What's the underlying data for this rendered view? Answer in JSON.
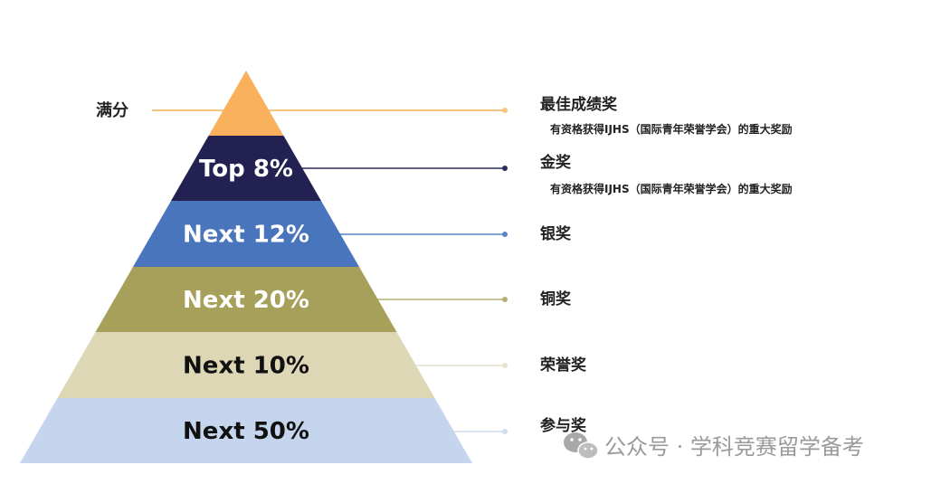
{
  "perfect_score_label": "满分",
  "tiers": [
    {
      "label": "",
      "award": "最佳成绩奖",
      "note": "有资格获得IJHS（国际青年荣誉学会）的重大奖励",
      "color": "#FAB15E",
      "text_color": "#ffffff",
      "line_color": "#F7C47F"
    },
    {
      "label": "Top 8%",
      "award": "金奖",
      "note": "有资格获得IJHS（国际青年荣誉学会）的重大奖励",
      "color": "#222151",
      "text_color": "#ffffff",
      "line_color": "#2B2A5C"
    },
    {
      "label": "Next 12%",
      "award": "银奖",
      "note": "",
      "color": "#4875BC",
      "text_color": "#ffffff",
      "line_color": "#5A84C5"
    },
    {
      "label": "Next 20%",
      "award": "铜奖",
      "note": "",
      "color": "#A7A05A",
      "text_color": "#ffffff",
      "line_color": "#B5AF73"
    },
    {
      "label": "Next 10%",
      "award": "荣誉奖",
      "note": "",
      "color": "#DDD7B6",
      "text_color": "#111111",
      "line_color": "#E6E2CC"
    },
    {
      "label": "Next 50%",
      "award": "参与奖",
      "note": "",
      "color": "#C5D5ED",
      "text_color": "#111111",
      "line_color": "#CFDCEF"
    }
  ],
  "watermark": {
    "text": "公众号 · 学科竞赛留学备考",
    "icon": "wechat-icon"
  }
}
